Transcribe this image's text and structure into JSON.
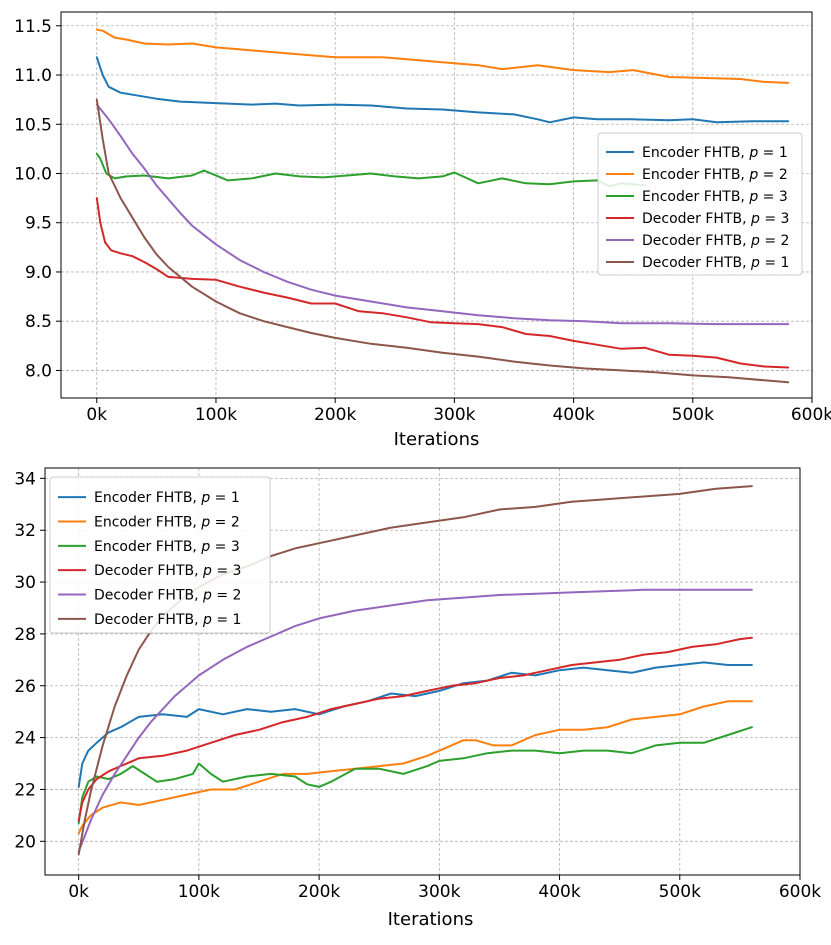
{
  "colors": {
    "c1": "#1f77b4",
    "c2": "#ff7f0e",
    "c3": "#2ca02c",
    "c4": "#d62728",
    "c5": "#9467bd",
    "c6": "#8c564b"
  },
  "chart_data": [
    {
      "type": "line",
      "title": "",
      "xlabel": "Iterations",
      "ylabel": "",
      "xlim": [
        -30000,
        600000
      ],
      "ylim": [
        7.72,
        11.64
      ],
      "xticks": [
        0,
        100000,
        200000,
        300000,
        400000,
        500000,
        600000
      ],
      "xtick_labels": [
        "0k",
        "100k",
        "200k",
        "300k",
        "400k",
        "500k",
        "600k"
      ],
      "yticks": [
        8.0,
        8.5,
        9.0,
        9.5,
        10.0,
        10.5,
        11.0,
        11.5
      ],
      "ytick_labels": [
        "8.0",
        "8.5",
        "9.0",
        "9.5",
        "10.0",
        "10.5",
        "11.0",
        "11.5"
      ],
      "grid": true,
      "legend_position": "center-right",
      "series": [
        {
          "name": "Encoder FHTB, p = 1",
          "name_prefix": "Encoder FHTB, ",
          "name_var": "p",
          "name_suffix": " = 1",
          "color": "#1f77b4",
          "x": [
            0,
            5000,
            10000,
            20000,
            30000,
            50000,
            70000,
            90000,
            110000,
            130000,
            150000,
            170000,
            200000,
            230000,
            260000,
            290000,
            320000,
            350000,
            370000,
            380000,
            400000,
            420000,
            450000,
            480000,
            500000,
            520000,
            550000,
            580000
          ],
          "y": [
            11.18,
            11.0,
            10.88,
            10.82,
            10.8,
            10.76,
            10.73,
            10.72,
            10.71,
            10.7,
            10.71,
            10.69,
            10.7,
            10.69,
            10.66,
            10.65,
            10.62,
            10.6,
            10.55,
            10.52,
            10.57,
            10.55,
            10.55,
            10.54,
            10.55,
            10.52,
            10.53,
            10.53
          ]
        },
        {
          "name": "Encoder FHTB, p = 2",
          "name_prefix": "Encoder FHTB, ",
          "name_var": "p",
          "name_suffix": " = 2",
          "color": "#ff7f0e",
          "x": [
            0,
            5000,
            15000,
            25000,
            40000,
            60000,
            80000,
            100000,
            130000,
            160000,
            200000,
            240000,
            280000,
            320000,
            340000,
            370000,
            400000,
            430000,
            450000,
            480000,
            510000,
            540000,
            560000,
            580000
          ],
          "y": [
            11.46,
            11.45,
            11.38,
            11.36,
            11.32,
            11.31,
            11.32,
            11.28,
            11.25,
            11.22,
            11.18,
            11.18,
            11.14,
            11.1,
            11.06,
            11.1,
            11.05,
            11.03,
            11.05,
            10.98,
            10.97,
            10.96,
            10.93,
            10.92
          ]
        },
        {
          "name": "Encoder FHTB, p = 3",
          "name_prefix": "Encoder FHTB, ",
          "name_var": "p",
          "name_suffix": " = 3",
          "color": "#2ca02c",
          "x": [
            0,
            3000,
            8000,
            15000,
            25000,
            40000,
            60000,
            80000,
            90000,
            110000,
            130000,
            150000,
            170000,
            190000,
            210000,
            230000,
            250000,
            270000,
            290000,
            300000,
            320000,
            340000,
            360000,
            380000,
            400000,
            420000,
            430000,
            440000,
            460000
          ],
          "y": [
            10.2,
            10.15,
            10.0,
            9.95,
            9.97,
            9.98,
            9.95,
            9.98,
            10.03,
            9.93,
            9.95,
            10.0,
            9.97,
            9.96,
            9.98,
            10.0,
            9.97,
            9.95,
            9.97,
            10.01,
            9.9,
            9.95,
            9.9,
            9.89,
            9.92,
            9.93,
            9.87,
            9.9,
            9.88
          ]
        },
        {
          "name": "Decoder FHTB, p = 3",
          "name_prefix": "Decoder FHTB, ",
          "name_var": "p",
          "name_suffix": " = 3",
          "color": "#d62728",
          "x": [
            0,
            3000,
            7000,
            12000,
            20000,
            30000,
            40000,
            50000,
            60000,
            80000,
            100000,
            120000,
            140000,
            160000,
            180000,
            200000,
            220000,
            240000,
            260000,
            280000,
            300000,
            320000,
            340000,
            360000,
            380000,
            400000,
            420000,
            440000,
            460000,
            480000,
            500000,
            520000,
            540000,
            560000,
            580000
          ],
          "y": [
            9.75,
            9.5,
            9.3,
            9.22,
            9.19,
            9.16,
            9.1,
            9.03,
            8.95,
            8.93,
            8.92,
            8.85,
            8.79,
            8.74,
            8.68,
            8.68,
            8.6,
            8.58,
            8.54,
            8.49,
            8.48,
            8.47,
            8.44,
            8.37,
            8.35,
            8.3,
            8.26,
            8.22,
            8.23,
            8.16,
            8.15,
            8.13,
            8.07,
            8.04,
            8.03
          ]
        },
        {
          "name": "Decoder FHTB, p = 2",
          "name_prefix": "Decoder FHTB, ",
          "name_var": "p",
          "name_suffix": " = 2",
          "color": "#9467bd",
          "x": [
            0,
            10000,
            20000,
            30000,
            40000,
            50000,
            60000,
            70000,
            80000,
            100000,
            120000,
            140000,
            160000,
            180000,
            200000,
            230000,
            260000,
            290000,
            320000,
            350000,
            380000,
            410000,
            440000,
            480000,
            520000,
            550000,
            580000
          ],
          "y": [
            10.7,
            10.55,
            10.38,
            10.2,
            10.05,
            9.88,
            9.74,
            9.6,
            9.47,
            9.28,
            9.12,
            9.0,
            8.9,
            8.82,
            8.76,
            8.7,
            8.64,
            8.6,
            8.56,
            8.53,
            8.51,
            8.5,
            8.48,
            8.48,
            8.47,
            8.47,
            8.47
          ]
        },
        {
          "name": "Decoder FHTB, p = 1",
          "name_prefix": "Decoder FHTB, ",
          "name_var": "p",
          "name_suffix": " = 1",
          "color": "#8c564b",
          "x": [
            0,
            5000,
            10000,
            20000,
            30000,
            40000,
            50000,
            60000,
            80000,
            100000,
            120000,
            140000,
            160000,
            180000,
            200000,
            230000,
            260000,
            290000,
            320000,
            350000,
            380000,
            410000,
            440000,
            470000,
            500000,
            530000,
            560000,
            580000
          ],
          "y": [
            10.75,
            10.35,
            10.0,
            9.75,
            9.55,
            9.35,
            9.18,
            9.05,
            8.85,
            8.7,
            8.58,
            8.5,
            8.44,
            8.38,
            8.33,
            8.27,
            8.23,
            8.18,
            8.14,
            8.09,
            8.05,
            8.02,
            8.0,
            7.98,
            7.95,
            7.93,
            7.9,
            7.88
          ]
        }
      ]
    },
    {
      "type": "line",
      "title": "",
      "xlabel": "Iterations",
      "ylabel": "",
      "xlim": [
        -28000,
        600000
      ],
      "ylim": [
        18.7,
        34.4
      ],
      "xticks": [
        0,
        100000,
        200000,
        300000,
        400000,
        500000,
        600000
      ],
      "xtick_labels": [
        "0k",
        "100k",
        "200k",
        "300k",
        "400k",
        "500k",
        "600k"
      ],
      "yticks": [
        20,
        22,
        24,
        26,
        28,
        30,
        32,
        34
      ],
      "ytick_labels": [
        "20",
        "22",
        "24",
        "26",
        "28",
        "30",
        "32",
        "34"
      ],
      "grid": true,
      "legend_position": "top-left",
      "series": [
        {
          "name": "Encoder FHTB, p = 1",
          "name_prefix": "Encoder FHTB, ",
          "name_var": "p",
          "name_suffix": " = 1",
          "color": "#1f77b4",
          "x": [
            0,
            3000,
            8000,
            15000,
            25000,
            35000,
            50000,
            70000,
            90000,
            100000,
            120000,
            140000,
            160000,
            180000,
            200000,
            220000,
            240000,
            260000,
            280000,
            300000,
            320000,
            340000,
            360000,
            380000,
            400000,
            420000,
            440000,
            460000,
            480000,
            500000,
            520000,
            540000,
            560000
          ],
          "y": [
            22.1,
            23.0,
            23.5,
            23.8,
            24.2,
            24.4,
            24.8,
            24.9,
            24.8,
            25.1,
            24.9,
            25.1,
            25.0,
            25.1,
            24.9,
            25.2,
            25.4,
            25.7,
            25.6,
            25.8,
            26.1,
            26.2,
            26.5,
            26.4,
            26.6,
            26.7,
            26.6,
            26.5,
            26.7,
            26.8,
            26.9,
            26.8,
            26.8
          ]
        },
        {
          "name": "Encoder FHTB, p = 2",
          "name_prefix": "Encoder FHTB, ",
          "name_var": "p",
          "name_suffix": " = 2",
          "color": "#ff7f0e",
          "x": [
            0,
            3000,
            10000,
            20000,
            35000,
            50000,
            70000,
            90000,
            110000,
            130000,
            150000,
            170000,
            190000,
            210000,
            230000,
            250000,
            270000,
            290000,
            310000,
            320000,
            330000,
            345000,
            360000,
            380000,
            400000,
            420000,
            440000,
            460000,
            480000,
            500000,
            520000,
            540000,
            560000
          ],
          "y": [
            20.3,
            20.6,
            21.0,
            21.3,
            21.5,
            21.4,
            21.6,
            21.8,
            22.0,
            22.0,
            22.3,
            22.6,
            22.6,
            22.7,
            22.8,
            22.9,
            23.0,
            23.3,
            23.7,
            23.9,
            23.9,
            23.7,
            23.7,
            24.1,
            24.3,
            24.3,
            24.4,
            24.7,
            24.8,
            24.9,
            25.2,
            25.4,
            25.4
          ]
        },
        {
          "name": "Encoder FHTB, p = 3",
          "name_prefix": "Encoder FHTB, ",
          "name_var": "p",
          "name_suffix": " = 3",
          "color": "#2ca02c",
          "x": [
            0,
            3000,
            8000,
            15000,
            25000,
            35000,
            45000,
            55000,
            65000,
            80000,
            95000,
            100000,
            110000,
            120000,
            140000,
            160000,
            180000,
            190000,
            200000,
            210000,
            230000,
            250000,
            270000,
            290000,
            300000,
            320000,
            340000,
            360000,
            380000,
            400000,
            420000,
            440000,
            460000,
            480000,
            500000,
            520000,
            540000,
            560000
          ],
          "y": [
            20.7,
            21.7,
            22.3,
            22.5,
            22.4,
            22.6,
            22.9,
            22.6,
            22.3,
            22.4,
            22.6,
            23.0,
            22.6,
            22.3,
            22.5,
            22.6,
            22.5,
            22.2,
            22.1,
            22.3,
            22.8,
            22.8,
            22.6,
            22.9,
            23.1,
            23.2,
            23.4,
            23.5,
            23.5,
            23.4,
            23.5,
            23.5,
            23.4,
            23.7,
            23.8,
            23.8,
            24.1,
            24.4
          ]
        },
        {
          "name": "Decoder FHTB, p = 3",
          "name_prefix": "Decoder FHTB, ",
          "name_var": "p",
          "name_suffix": " = 3",
          "color": "#d62728",
          "x": [
            0,
            3000,
            8000,
            15000,
            25000,
            35000,
            50000,
            70000,
            90000,
            110000,
            130000,
            150000,
            170000,
            190000,
            210000,
            230000,
            250000,
            270000,
            290000,
            310000,
            330000,
            350000,
            370000,
            390000,
            410000,
            430000,
            450000,
            470000,
            490000,
            510000,
            530000,
            550000,
            560000
          ],
          "y": [
            20.8,
            21.5,
            22.0,
            22.4,
            22.7,
            22.9,
            23.2,
            23.3,
            23.5,
            23.8,
            24.1,
            24.3,
            24.6,
            24.8,
            25.1,
            25.3,
            25.5,
            25.6,
            25.8,
            26.0,
            26.1,
            26.3,
            26.4,
            26.6,
            26.8,
            26.9,
            27.0,
            27.2,
            27.3,
            27.5,
            27.6,
            27.8,
            27.85
          ]
        },
        {
          "name": "Decoder FHTB, p = 2",
          "name_prefix": "Decoder FHTB, ",
          "name_var": "p",
          "name_suffix": " = 2",
          "color": "#9467bd",
          "x": [
            0,
            10000,
            20000,
            30000,
            40000,
            50000,
            60000,
            70000,
            80000,
            100000,
            120000,
            140000,
            160000,
            180000,
            200000,
            230000,
            260000,
            290000,
            320000,
            350000,
            380000,
            410000,
            440000,
            470000,
            500000,
            530000,
            560000
          ],
          "y": [
            19.6,
            20.8,
            21.8,
            22.6,
            23.3,
            24.0,
            24.6,
            25.1,
            25.6,
            26.4,
            27.0,
            27.5,
            27.9,
            28.3,
            28.6,
            28.9,
            29.1,
            29.3,
            29.4,
            29.5,
            29.55,
            29.6,
            29.65,
            29.7,
            29.7,
            29.7,
            29.7
          ]
        },
        {
          "name": "Decoder FHTB, p = 1",
          "name_prefix": "Decoder FHTB, ",
          "name_var": "p",
          "name_suffix": " = 1",
          "color": "#8c564b",
          "x": [
            0,
            5000,
            10000,
            20000,
            30000,
            40000,
            50000,
            60000,
            70000,
            80000,
            90000,
            100000,
            120000,
            140000,
            160000,
            180000,
            200000,
            230000,
            260000,
            290000,
            320000,
            350000,
            380000,
            410000,
            440000,
            470000,
            500000,
            530000,
            560000
          ],
          "y": [
            19.5,
            20.8,
            21.9,
            23.7,
            25.2,
            26.4,
            27.4,
            28.1,
            28.7,
            29.1,
            29.5,
            29.8,
            30.3,
            30.6,
            31.0,
            31.3,
            31.5,
            31.8,
            32.1,
            32.3,
            32.5,
            32.8,
            32.9,
            33.1,
            33.2,
            33.3,
            33.4,
            33.6,
            33.7
          ]
        }
      ]
    }
  ]
}
